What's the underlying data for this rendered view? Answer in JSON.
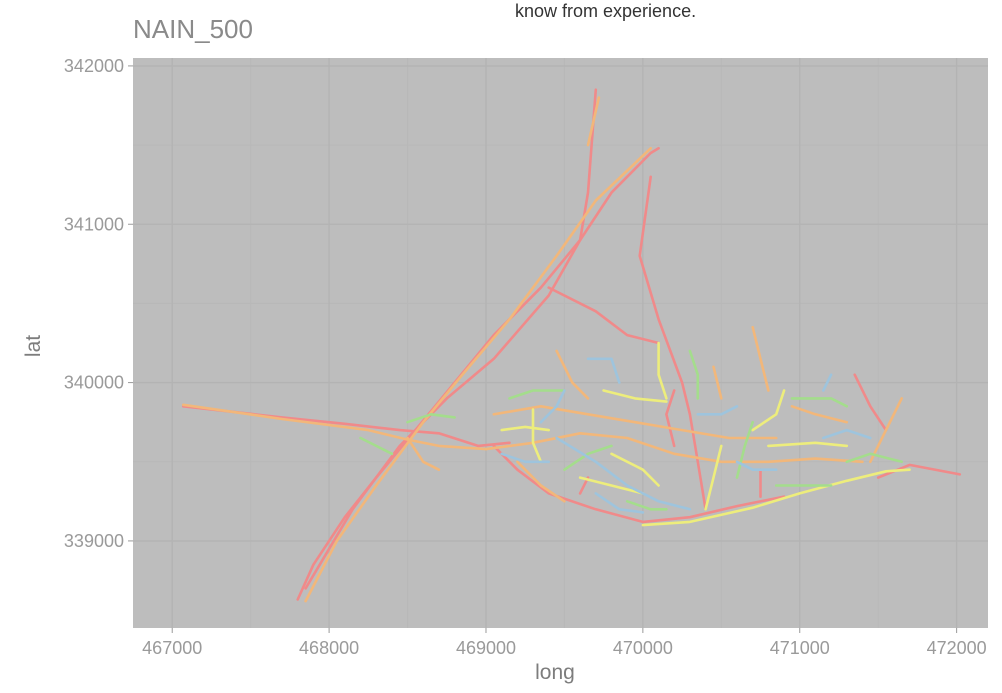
{
  "chart_data": {
    "type": "line",
    "title": "NAIN_500",
    "subtitle": "know from experience.",
    "xlabel": "long",
    "ylabel": "lat",
    "xlim": [
      466750,
      472200
    ],
    "ylim": [
      338450,
      342050
    ],
    "x_ticks": [
      467000,
      468000,
      469000,
      470000,
      471000,
      472000
    ],
    "x_tick_labels": [
      "467000",
      "468000",
      "469000",
      "470000",
      "471000",
      "472000"
    ],
    "y_ticks": [
      339000,
      340000,
      341000,
      342000
    ],
    "y_tick_labels": [
      "339000",
      "340000",
      "341000",
      "342000"
    ],
    "grid": true,
    "colors": {
      "panel": "#bdbdbd",
      "grid_major": "#b3b3b3",
      "grid_minor": "#b8b8b8",
      "red": "#f08a8a",
      "orange": "#f2b77a",
      "yellow": "#eded7c",
      "green": "#a4dd8c",
      "blue": "#9ec4dd"
    },
    "series": [
      {
        "color": "#f08a8a",
        "segments": [
          [
            [
              467070,
              339850
            ],
            [
              467700,
              339780
            ],
            [
              468100,
              339740
            ],
            [
              468450,
              339700
            ],
            [
              468700,
              339680
            ],
            [
              468950,
              339600
            ],
            [
              469150,
              339620
            ]
          ],
          [
            [
              467800,
              338630
            ],
            [
              467900,
              338850
            ],
            [
              468100,
              339150
            ],
            [
              468300,
              339400
            ],
            [
              468550,
              339700
            ],
            [
              468800,
              340000
            ],
            [
              469050,
              340300
            ],
            [
              469350,
              340600
            ],
            [
              469600,
              340900
            ],
            [
              469800,
              341200
            ],
            [
              470050,
              341450
            ],
            [
              470100,
              341480
            ]
          ],
          [
            [
              467850,
              338700
            ],
            [
              468150,
              339200
            ],
            [
              468450,
              339600
            ],
            [
              468750,
              339900
            ],
            [
              469050,
              340150
            ],
            [
              469400,
              340550
            ],
            [
              469600,
              340900
            ],
            [
              469650,
              341200
            ],
            [
              469700,
              341850
            ]
          ],
          [
            [
              469400,
              340600
            ],
            [
              469700,
              340450
            ],
            [
              469900,
              340300
            ],
            [
              470100,
              340250
            ]
          ],
          [
            [
              469050,
              339600
            ],
            [
              469200,
              339450
            ],
            [
              469400,
              339300
            ],
            [
              469700,
              339200
            ],
            [
              470000,
              339120
            ],
            [
              470300,
              339150
            ],
            [
              470600,
              339220
            ],
            [
              470900,
              339280
            ]
          ],
          [
            [
              470050,
              341300
            ],
            [
              469980,
              340800
            ],
            [
              470100,
              340400
            ],
            [
              470250,
              340000
            ],
            [
              470300,
              339800
            ],
            [
              470350,
              339500
            ],
            [
              470400,
              339200
            ]
          ],
          [
            [
              471500,
              339400
            ],
            [
              471700,
              339480
            ],
            [
              472020,
              339420
            ]
          ],
          [
            [
              471350,
              340050
            ],
            [
              471450,
              339850
            ],
            [
              471550,
              339700
            ]
          ],
          [
            [
              469600,
              339300
            ],
            [
              469650,
              339400
            ]
          ],
          [
            [
              470750,
              339280
            ],
            [
              470750,
              339450
            ]
          ],
          [
            [
              470200,
              339600
            ],
            [
              470150,
              339800
            ],
            [
              470200,
              339950
            ]
          ]
        ]
      },
      {
        "color": "#f2b77a",
        "segments": [
          [
            [
              467070,
              339860
            ],
            [
              467700,
              339770
            ],
            [
              468250,
              339700
            ],
            [
              468500,
              339640
            ],
            [
              468700,
              339600
            ],
            [
              469000,
              339580
            ]
          ],
          [
            [
              467850,
              338620
            ],
            [
              468050,
              339000
            ],
            [
              468300,
              339350
            ],
            [
              468600,
              339750
            ],
            [
              468850,
              340050
            ],
            [
              469150,
              340400
            ],
            [
              469450,
              340800
            ],
            [
              469700,
              341150
            ],
            [
              470050,
              341480
            ]
          ],
          [
            [
              469650,
              341500
            ],
            [
              469720,
              341800
            ]
          ],
          [
            [
              469050,
              339800
            ],
            [
              469350,
              339850
            ],
            [
              469650,
              339800
            ],
            [
              469950,
              339750
            ],
            [
              470250,
              339700
            ],
            [
              470550,
              339650
            ],
            [
              470850,
              339650
            ]
          ],
          [
            [
              469000,
              339580
            ],
            [
              469300,
              339620
            ],
            [
              469600,
              339680
            ],
            [
              469900,
              339650
            ],
            [
              470200,
              339550
            ],
            [
              470500,
              339500
            ],
            [
              470800,
              339500
            ],
            [
              471100,
              339520
            ],
            [
              471400,
              339500
            ]
          ],
          [
            [
              470700,
              340350
            ],
            [
              470750,
              340150
            ],
            [
              470800,
              339950
            ]
          ],
          [
            [
              469450,
              340200
            ],
            [
              469550,
              340000
            ],
            [
              469650,
              339900
            ]
          ],
          [
            [
              471450,
              339500
            ],
            [
              471550,
              339700
            ],
            [
              471650,
              339900
            ]
          ],
          [
            [
              470450,
              340100
            ],
            [
              470500,
              339900
            ]
          ],
          [
            [
              469200,
              339500
            ],
            [
              469350,
              339350
            ],
            [
              469500,
              339250
            ]
          ],
          [
            [
              470950,
              339850
            ],
            [
              471100,
              339800
            ],
            [
              471300,
              339750
            ]
          ],
          [
            [
              468500,
              339650
            ],
            [
              468600,
              339500
            ],
            [
              468700,
              339450
            ]
          ]
        ]
      },
      {
        "color": "#eded7c",
        "segments": [
          [
            [
              470000,
              339100
            ],
            [
              470300,
              339120
            ],
            [
              470700,
              339210
            ],
            [
              471000,
              339300
            ],
            [
              471300,
              339380
            ],
            [
              471550,
              339440
            ],
            [
              471700,
              339450
            ]
          ],
          [
            [
              469300,
              339830
            ],
            [
              469300,
              339620
            ],
            [
              469350,
              339500
            ]
          ],
          [
            [
              470100,
              340250
            ],
            [
              470100,
              340050
            ],
            [
              470150,
              339900
            ]
          ],
          [
            [
              470800,
              339600
            ],
            [
              471100,
              339620
            ],
            [
              471300,
              339600
            ]
          ],
          [
            [
              469600,
              339400
            ],
            [
              469800,
              339350
            ],
            [
              470000,
              339300
            ]
          ],
          [
            [
              469750,
              339950
            ],
            [
              469950,
              339900
            ],
            [
              470150,
              339880
            ]
          ],
          [
            [
              470400,
              339200
            ],
            [
              470450,
              339400
            ],
            [
              470500,
              339600
            ]
          ],
          [
            [
              469100,
              339700
            ],
            [
              469250,
              339720
            ],
            [
              469400,
              339700
            ]
          ],
          [
            [
              470700,
              339700
            ],
            [
              470850,
              339800
            ],
            [
              470900,
              339950
            ]
          ],
          [
            [
              469800,
              339550
            ],
            [
              470000,
              339450
            ],
            [
              470100,
              339350
            ]
          ]
        ]
      },
      {
        "color": "#a4dd8c",
        "segments": [
          [
            [
              468500,
              339750
            ],
            [
              468650,
              339800
            ],
            [
              468800,
              339780
            ]
          ],
          [
            [
              470950,
              339900
            ],
            [
              471200,
              339900
            ],
            [
              471300,
              339850
            ]
          ],
          [
            [
              469150,
              339900
            ],
            [
              469300,
              339950
            ],
            [
              469500,
              339950
            ]
          ],
          [
            [
              470300,
              340200
            ],
            [
              470350,
              340050
            ],
            [
              470350,
              339900
            ]
          ],
          [
            [
              470850,
              339350
            ],
            [
              471000,
              339350
            ],
            [
              471200,
              339350
            ]
          ],
          [
            [
              469500,
              339450
            ],
            [
              469650,
              339550
            ],
            [
              469800,
              339600
            ]
          ],
          [
            [
              471300,
              339500
            ],
            [
              471450,
              339550
            ],
            [
              471650,
              339500
            ]
          ],
          [
            [
              468400,
              339550
            ],
            [
              468300,
              339600
            ],
            [
              468200,
              339650
            ]
          ],
          [
            [
              470600,
              339400
            ],
            [
              470650,
              339600
            ],
            [
              470700,
              339750
            ]
          ],
          [
            [
              469900,
              339250
            ],
            [
              470050,
              339200
            ],
            [
              470150,
              339200
            ]
          ]
        ]
      },
      {
        "color": "#9ec4dd",
        "segments": [
          [
            [
              469450,
              339650
            ],
            [
              469700,
              339500
            ],
            [
              469900,
              339350
            ],
            [
              470100,
              339250
            ],
            [
              470300,
              339200
            ]
          ],
          [
            [
              469100,
              339550
            ],
            [
              469250,
              339500
            ],
            [
              469400,
              339500
            ]
          ],
          [
            [
              469650,
              340150
            ],
            [
              469800,
              340150
            ],
            [
              469850,
              340000
            ]
          ],
          [
            [
              470600,
              339500
            ],
            [
              470700,
              339450
            ],
            [
              470850,
              339450
            ]
          ],
          [
            [
              469350,
              339750
            ],
            [
              469450,
              339850
            ],
            [
              469500,
              339950
            ]
          ],
          [
            [
              471150,
              339650
            ],
            [
              471300,
              339700
            ],
            [
              471450,
              339650
            ]
          ],
          [
            [
              469700,
              339300
            ],
            [
              469850,
              339200
            ],
            [
              470000,
              339180
            ]
          ],
          [
            [
              470350,
              339800
            ],
            [
              470500,
              339800
            ],
            [
              470600,
              339850
            ]
          ],
          [
            [
              471150,
              339950
            ],
            [
              471200,
              340050
            ]
          ]
        ]
      }
    ]
  }
}
